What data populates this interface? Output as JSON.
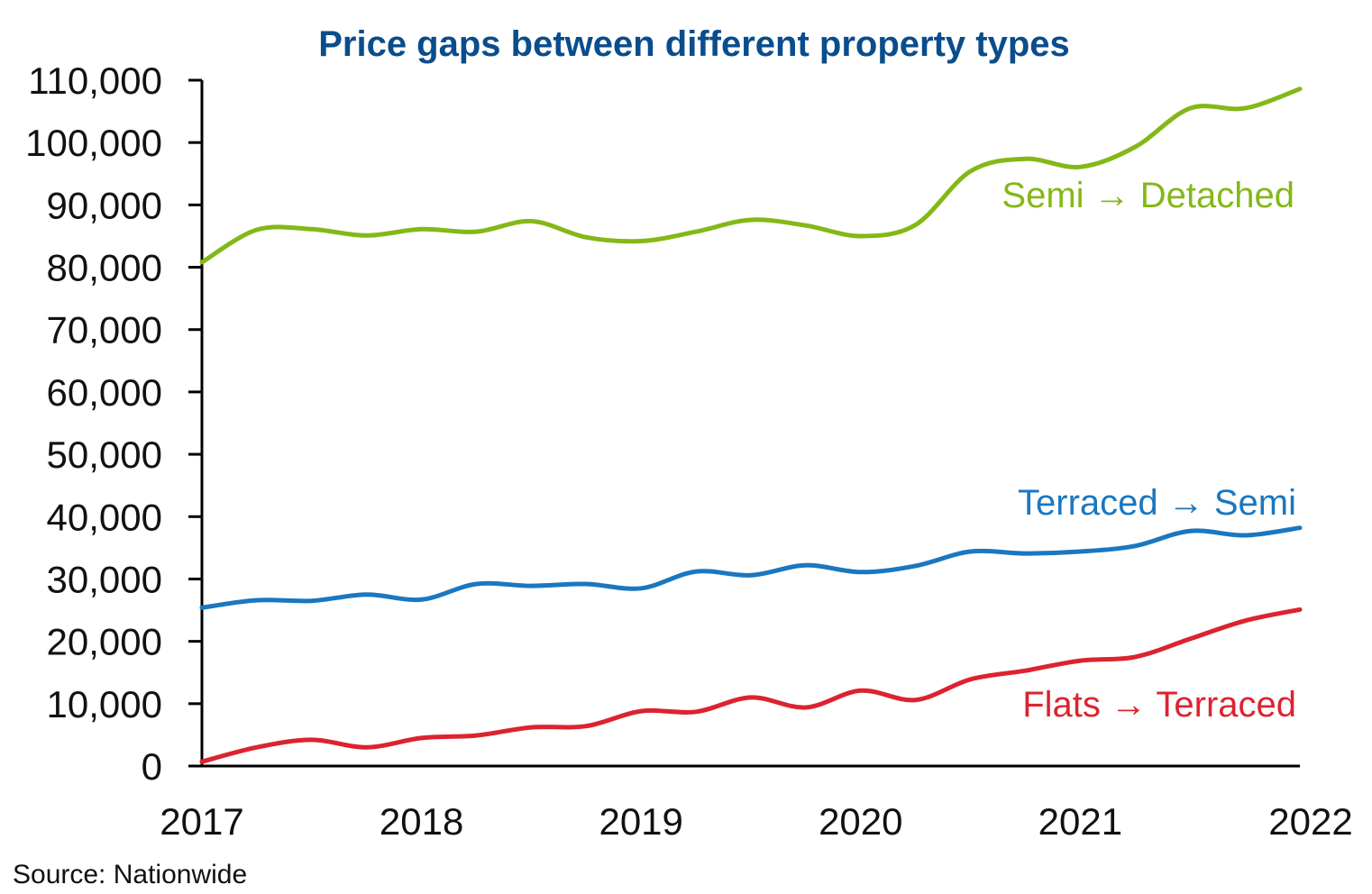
{
  "chart_data": {
    "type": "line",
    "title": "Price gaps between different property types",
    "xlabel": "",
    "ylabel": "",
    "source": "Source: Nationwide",
    "xlim": [
      2017,
      2022
    ],
    "ylim": [
      0,
      110000
    ],
    "x_ticks": [
      2017,
      2018,
      2019,
      2020,
      2021,
      2022
    ],
    "x_tick_labels": [
      "2017",
      "2018",
      "2019",
      "2020",
      "2021",
      "2022"
    ],
    "y_ticks": [
      0,
      10000,
      20000,
      30000,
      40000,
      50000,
      60000,
      70000,
      80000,
      90000,
      100000,
      110000
    ],
    "y_tick_labels": [
      "0",
      "10,000",
      "20,000",
      "30,000",
      "40,000",
      "50,000",
      "60,000",
      "70,000",
      "80,000",
      "90,000",
      "100,000",
      "110,000"
    ],
    "grid": false,
    "legend": "inline-labels-right",
    "x": [
      2017.0,
      2017.25,
      2017.5,
      2017.75,
      2018.0,
      2018.25,
      2018.5,
      2018.75,
      2019.0,
      2019.25,
      2019.5,
      2019.75,
      2020.0,
      2020.25,
      2020.5,
      2020.75,
      2021.0,
      2021.25,
      2021.5,
      2021.75,
      2022.0
    ],
    "series": [
      {
        "name": "Semi → Detached",
        "color": "#84b817",
        "values": [
          80800,
          86000,
          86100,
          85100,
          86100,
          85700,
          87400,
          84800,
          84200,
          85700,
          87600,
          86700,
          85000,
          86800,
          95400,
          97400,
          96100,
          99300,
          105500,
          105500,
          108600
        ]
      },
      {
        "name": "Terraced → Semi",
        "color": "#1a77c0",
        "values": [
          25400,
          26600,
          26500,
          27500,
          26700,
          29200,
          28900,
          29200,
          28500,
          31200,
          30600,
          32200,
          31100,
          32100,
          34400,
          34100,
          34400,
          35300,
          37700,
          37000,
          38200
        ]
      },
      {
        "name": "Flats → Terraced",
        "color": "#dc2330",
        "values": [
          700,
          3000,
          4200,
          3000,
          4500,
          4900,
          6200,
          6400,
          8800,
          8700,
          11000,
          9400,
          12100,
          10600,
          13900,
          15300,
          16900,
          17500,
          20400,
          23300,
          25100
        ]
      }
    ]
  }
}
